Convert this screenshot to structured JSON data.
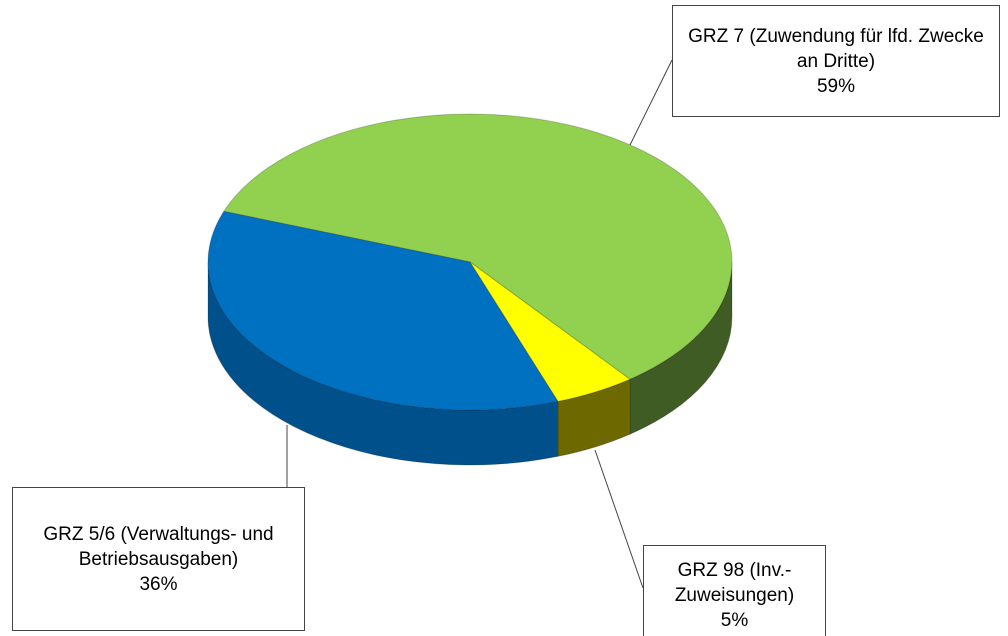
{
  "chart_data": {
    "type": "pie",
    "categories": [
      "GRZ 7 (Zuwendung für lfd. Zwecke an Dritte)",
      "GRZ 98 (Inv.-Zuweisungen)",
      "GRZ 5/6 (Verwaltungs- und Betriebsausgaben)"
    ],
    "values": [
      59,
      5,
      36
    ],
    "value_labels": [
      "59%",
      "5%",
      "36%"
    ],
    "colors": [
      "#92d050",
      "#ffff00",
      "#0070c0"
    ],
    "side_colors": [
      "#3f5c24",
      "#6e6800",
      "#00508c"
    ]
  }
}
